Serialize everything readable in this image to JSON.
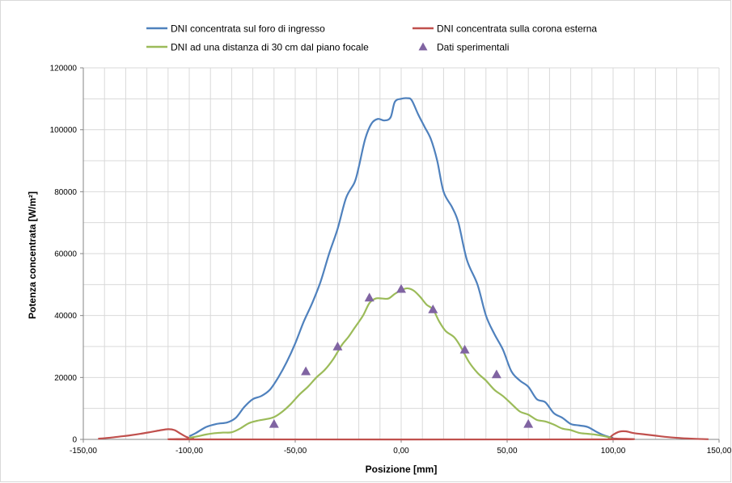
{
  "chart_data": {
    "type": "line",
    "title": "",
    "xlabel": "Posizione  [mm]",
    "ylabel": "Potenza concentrata  [W/m²]",
    "xlim": [
      -150,
      150
    ],
    "ylim": [
      0,
      120000
    ],
    "grid": true,
    "legend_position": "top",
    "x_ticks": [
      -150,
      -100,
      -50,
      0,
      50,
      100,
      150
    ],
    "x_tick_labels": [
      "-150,00",
      "-100,00",
      "-50,00",
      "0,00",
      "50,00",
      "100,00",
      "150,00"
    ],
    "y_ticks": [
      0,
      20000,
      40000,
      60000,
      80000,
      100000,
      120000
    ],
    "y_tick_labels": [
      "0",
      "20000",
      "40000",
      "60000",
      "80000",
      "100000",
      "120000"
    ],
    "series": [
      {
        "name": "DNI concentrata sul foro di ingresso",
        "kind": "line",
        "color": "#4F81BD",
        "points": [
          [
            -100,
            1000
          ],
          [
            -97,
            2000
          ],
          [
            -92,
            4000
          ],
          [
            -87,
            5000
          ],
          [
            -82,
            5500
          ],
          [
            -78,
            7000
          ],
          [
            -74,
            10500
          ],
          [
            -70,
            13000
          ],
          [
            -66,
            14000
          ],
          [
            -62,
            16000
          ],
          [
            -58,
            20000
          ],
          [
            -54,
            25000
          ],
          [
            -50,
            31000
          ],
          [
            -46,
            38000
          ],
          [
            -42,
            44000
          ],
          [
            -38,
            51000
          ],
          [
            -34,
            60000
          ],
          [
            -30,
            68000
          ],
          [
            -26,
            78000
          ],
          [
            -22,
            83000
          ],
          [
            -20,
            88000
          ],
          [
            -17,
            97000
          ],
          [
            -14,
            102000
          ],
          [
            -11,
            103500
          ],
          [
            -8,
            103000
          ],
          [
            -5,
            104000
          ],
          [
            -3,
            109000
          ],
          [
            0,
            110000
          ],
          [
            3,
            110200
          ],
          [
            5,
            109500
          ],
          [
            8,
            105000
          ],
          [
            11,
            101000
          ],
          [
            14,
            97000
          ],
          [
            17,
            90000
          ],
          [
            20,
            80000
          ],
          [
            24,
            75000
          ],
          [
            27,
            70000
          ],
          [
            31,
            58000
          ],
          [
            36,
            50000
          ],
          [
            40,
            40000
          ],
          [
            44,
            34000
          ],
          [
            48,
            29000
          ],
          [
            52,
            22000
          ],
          [
            56,
            19000
          ],
          [
            60,
            17000
          ],
          [
            64,
            13000
          ],
          [
            68,
            12000
          ],
          [
            72,
            8500
          ],
          [
            76,
            7000
          ],
          [
            80,
            5000
          ],
          [
            84,
            4500
          ],
          [
            88,
            4000
          ],
          [
            92,
            2500
          ],
          [
            95,
            1500
          ],
          [
            98,
            800
          ],
          [
            100,
            500
          ]
        ]
      },
      {
        "name": "DNI concentrata sulla corona esterna",
        "kind": "line",
        "color": "#C0504D",
        "points": [
          [
            -143,
            200
          ],
          [
            -138,
            500
          ],
          [
            -133,
            900
          ],
          [
            -128,
            1300
          ],
          [
            -123,
            1800
          ],
          [
            -118,
            2400
          ],
          [
            -114,
            2900
          ],
          [
            -110,
            3300
          ],
          [
            -107,
            3000
          ],
          [
            -104,
            1800
          ],
          [
            -101,
            700
          ],
          [
            -98,
            200
          ],
          [
            -95,
            0
          ],
          [
            95,
            0
          ],
          [
            98,
            400
          ],
          [
            100,
            1500
          ],
          [
            103,
            2500
          ],
          [
            106,
            2600
          ],
          [
            110,
            2000
          ],
          [
            115,
            1600
          ],
          [
            120,
            1200
          ],
          [
            125,
            800
          ],
          [
            130,
            500
          ],
          [
            135,
            300
          ],
          [
            140,
            150
          ],
          [
            145,
            50
          ]
        ]
      },
      {
        "name": "DNI ad una distanza di 30 cm dal piano focale",
        "kind": "line",
        "color": "#9BBB59",
        "points": [
          [
            -100,
            500
          ],
          [
            -96,
            1000
          ],
          [
            -92,
            1600
          ],
          [
            -88,
            2000
          ],
          [
            -84,
            2200
          ],
          [
            -80,
            2300
          ],
          [
            -76,
            3500
          ],
          [
            -72,
            5200
          ],
          [
            -68,
            6000
          ],
          [
            -64,
            6500
          ],
          [
            -60,
            7200
          ],
          [
            -56,
            9000
          ],
          [
            -52,
            11500
          ],
          [
            -48,
            14500
          ],
          [
            -44,
            17000
          ],
          [
            -40,
            20000
          ],
          [
            -36,
            22500
          ],
          [
            -32,
            26000
          ],
          [
            -28,
            30500
          ],
          [
            -25,
            33000
          ],
          [
            -22,
            36000
          ],
          [
            -18,
            40000
          ],
          [
            -15,
            44000
          ],
          [
            -12,
            45500
          ],
          [
            -9,
            45500
          ],
          [
            -6,
            45500
          ],
          [
            -3,
            47000
          ],
          [
            0,
            48200
          ],
          [
            3,
            48800
          ],
          [
            6,
            48000
          ],
          [
            9,
            46000
          ],
          [
            12,
            43500
          ],
          [
            15,
            42000
          ],
          [
            18,
            38000
          ],
          [
            21,
            35000
          ],
          [
            25,
            33000
          ],
          [
            28,
            30000
          ],
          [
            32,
            25000
          ],
          [
            36,
            21500
          ],
          [
            40,
            19000
          ],
          [
            44,
            16000
          ],
          [
            48,
            14000
          ],
          [
            52,
            11500
          ],
          [
            56,
            9000
          ],
          [
            60,
            8000
          ],
          [
            64,
            6300
          ],
          [
            68,
            5800
          ],
          [
            72,
            4800
          ],
          [
            76,
            3500
          ],
          [
            80,
            3000
          ],
          [
            84,
            2100
          ],
          [
            88,
            1800
          ],
          [
            92,
            1500
          ],
          [
            96,
            1000
          ],
          [
            99,
            500
          ]
        ]
      },
      {
        "name": "Dati sperimentali",
        "kind": "scatter",
        "marker": "triangle",
        "color": "#8064A2",
        "points": [
          [
            -60,
            5000
          ],
          [
            -45,
            22000
          ],
          [
            -30,
            30000
          ],
          [
            -15,
            45800
          ],
          [
            0,
            48600
          ],
          [
            15,
            42000
          ],
          [
            30,
            29000
          ],
          [
            45,
            21000
          ],
          [
            60,
            5000
          ]
        ]
      }
    ]
  }
}
